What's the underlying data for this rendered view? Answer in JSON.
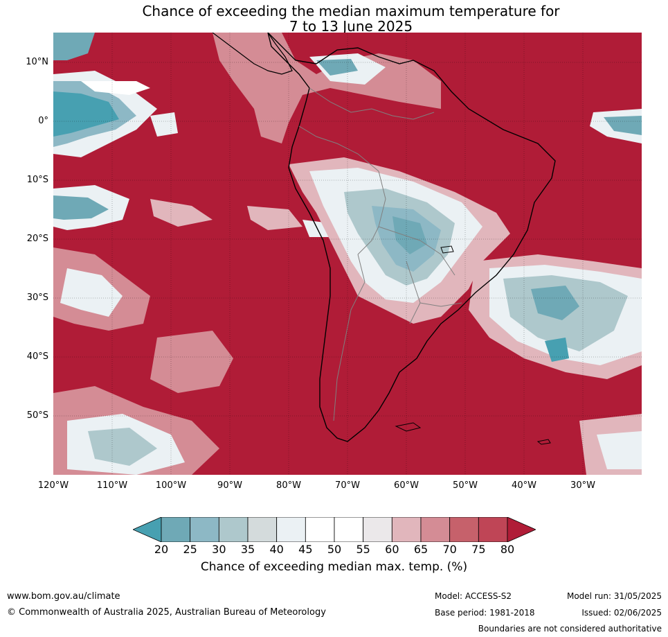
{
  "title": {
    "line1": "Chance of exceeding the median maximum temperature for",
    "line2": "7 to 13 June 2025"
  },
  "map": {
    "lat_labels": [
      "10°N",
      "0°",
      "10°S",
      "20°S",
      "30°S",
      "40°S",
      "50°S"
    ],
    "lon_labels": [
      "120°W",
      "110°W",
      "100°W",
      "90°W",
      "80°W",
      "70°W",
      "60°W",
      "50°W",
      "40°W",
      "30°W"
    ],
    "extent": {
      "lon": [
        -120,
        -20
      ],
      "lat": [
        -60,
        15
      ]
    },
    "colors": {
      "high": "#b01c37",
      "mid_high": "#c6616b",
      "neutral": "#ffffff",
      "low": "#6fa9b6",
      "very_low": "#47a0b1",
      "coast": "#000000",
      "borders": "#808080"
    }
  },
  "colorbar": {
    "ticks": [
      "20",
      "25",
      "30",
      "35",
      "40",
      "45",
      "50",
      "55",
      "60",
      "65",
      "70",
      "75",
      "80"
    ],
    "colors": [
      "#47a0b1",
      "#6fa9b6",
      "#8db8c5",
      "#aec8cc",
      "#d4dbdc",
      "#ebf1f4",
      "#ffffff",
      "#ffffff",
      "#ebe8ea",
      "#e1b6bc",
      "#d48c95",
      "#c6616b",
      "#bf4556",
      "#b01c37"
    ],
    "label": "Chance of exceeding median max. temp. (%)"
  },
  "footer": {
    "website": "www.bom.gov.au/climate",
    "copyright": "© Commonwealth of Australia 2025, Australian Bureau of Meteorology",
    "model": "Model: ACCESS-S2",
    "model_run": "Model run: 31/05/2025",
    "base_period": "Base period: 1981-2018",
    "issued": "Issued: 02/06/2025",
    "disclaimer": "Boundaries are not considered authoritative"
  }
}
